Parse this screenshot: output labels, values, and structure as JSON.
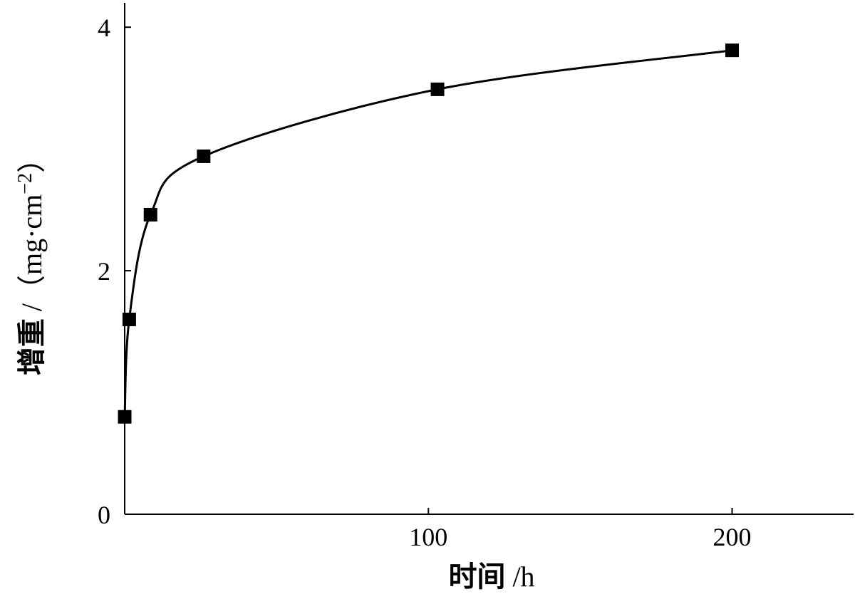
{
  "chart_data": {
    "type": "line",
    "title": "",
    "xlabel_cjk": "时间",
    "xlabel_unit": " /h",
    "ylabel_cjk": "增重",
    "ylabel_unit": " /（mg·cm",
    "ylabel_sup": "−2",
    "ylabel_close": "）",
    "xlim": [
      0,
      240
    ],
    "ylim": [
      0,
      4.2
    ],
    "x_ticks": [
      {
        "value": 100,
        "label": "100"
      },
      {
        "value": 200,
        "label": "200"
      }
    ],
    "y_ticks": [
      {
        "value": 0,
        "label": "0"
      },
      {
        "value": 2,
        "label": "2"
      },
      {
        "value": 4,
        "label": "4"
      }
    ],
    "grid": false,
    "series": [
      {
        "marker": "square",
        "color": "#000000",
        "x": [
          0,
          1.5,
          8.5,
          26,
          103,
          200
        ],
        "y": [
          0.8,
          1.6,
          2.46,
          2.94,
          3.49,
          3.81
        ]
      }
    ]
  }
}
